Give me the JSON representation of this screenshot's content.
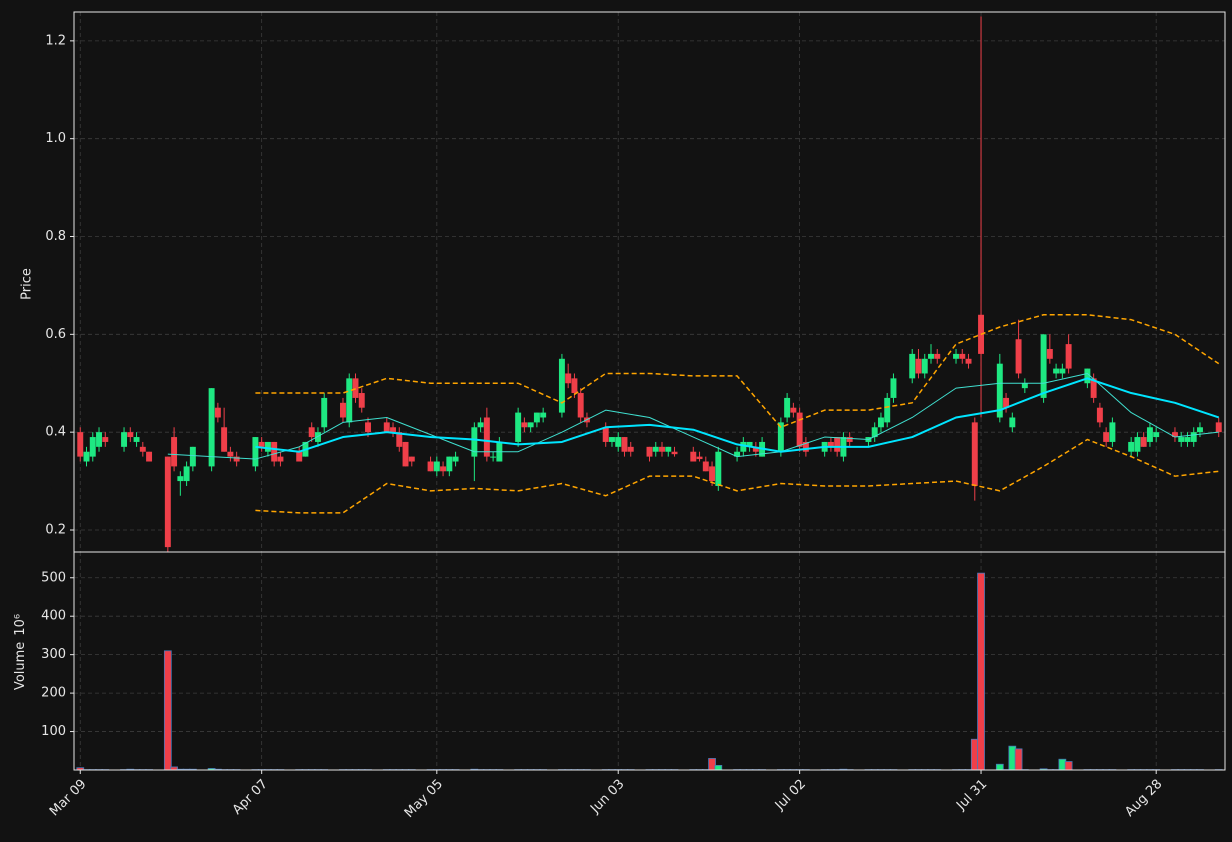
{
  "chart_data": {
    "type": "candlestick",
    "x": [
      "Mar 09",
      "Mar 10",
      "Mar 11",
      "Mar 12",
      "Mar 13",
      "Mar 16",
      "Mar 17",
      "Mar 18",
      "Mar 19",
      "Mar 20",
      "Mar 23",
      "Mar 24",
      "Mar 25",
      "Mar 26",
      "Mar 27",
      "Mar 30",
      "Mar 31",
      "Apr 01",
      "Apr 02",
      "Apr 03",
      "Apr 06",
      "Apr 07",
      "Apr 08",
      "Apr 09",
      "Apr 10",
      "Apr 13",
      "Apr 14",
      "Apr 15",
      "Apr 16",
      "Apr 17",
      "Apr 20",
      "Apr 21",
      "Apr 22",
      "Apr 23",
      "Apr 24",
      "Apr 27",
      "Apr 28",
      "Apr 29",
      "Apr 30",
      "May 01",
      "May 04",
      "May 05",
      "May 06",
      "May 07",
      "May 08",
      "May 11",
      "May 12",
      "May 13",
      "May 14",
      "May 15",
      "May 18",
      "May 19",
      "May 20",
      "May 21",
      "May 22",
      "May 25",
      "May 26",
      "May 27",
      "May 28",
      "May 29",
      "Jun 01",
      "Jun 02",
      "Jun 03",
      "Jun 04",
      "Jun 05",
      "Jun 08",
      "Jun 09",
      "Jun 10",
      "Jun 11",
      "Jun 12",
      "Jun 15",
      "Jun 16",
      "Jun 17",
      "Jun 18",
      "Jun 19",
      "Jun 22",
      "Jun 23",
      "Jun 24",
      "Jun 25",
      "Jun 26",
      "Jun 29",
      "Jun 30",
      "Jul 01",
      "Jul 02",
      "Jul 03",
      "Jul 06",
      "Jul 07",
      "Jul 08",
      "Jul 09",
      "Jul 10",
      "Jul 13",
      "Jul 14",
      "Jul 15",
      "Jul 16",
      "Jul 17",
      "Jul 20",
      "Jul 21",
      "Jul 22",
      "Jul 23",
      "Jul 24",
      "Jul 27",
      "Jul 28",
      "Jul 29",
      "Jul 30",
      "Jul 31",
      "Aug 03",
      "Aug 04",
      "Aug 05",
      "Aug 06",
      "Aug 07",
      "Aug 10",
      "Aug 11",
      "Aug 12",
      "Aug 13",
      "Aug 14",
      "Aug 17",
      "Aug 18",
      "Aug 19",
      "Aug 20",
      "Aug 21",
      "Aug 24",
      "Aug 25",
      "Aug 26",
      "Aug 27",
      "Aug 28",
      "Aug 31",
      "Sep 01",
      "Sep 02",
      "Sep 03",
      "Sep 04",
      "Sep 07"
    ],
    "open": [
      0.4,
      0.34,
      0.35,
      0.37,
      0.39,
      0.37,
      0.4,
      0.38,
      0.37,
      0.36,
      0.35,
      0.39,
      0.3,
      0.3,
      0.33,
      0.33,
      0.45,
      0.41,
      0.36,
      0.35,
      0.33,
      0.38,
      0.36,
      0.38,
      0.35,
      0.36,
      0.35,
      0.41,
      0.38,
      0.41,
      0.46,
      0.42,
      0.51,
      0.48,
      0.42,
      0.42,
      0.41,
      0.4,
      0.38,
      0.35,
      0.34,
      0.32,
      0.33,
      0.32,
      0.34,
      0.35,
      0.41,
      0.43,
      0.35,
      0.34,
      0.38,
      0.42,
      0.41,
      0.42,
      0.43,
      0.44,
      0.52,
      0.51,
      0.48,
      0.43,
      0.41,
      0.38,
      0.37,
      0.39,
      0.37,
      0.37,
      0.36,
      0.37,
      0.36,
      0.36,
      0.36,
      0.35,
      0.34,
      0.33,
      0.29,
      0.35,
      0.36,
      0.37,
      0.37,
      0.35,
      0.36,
      0.43,
      0.45,
      0.44,
      0.38,
      0.36,
      0.38,
      0.39,
      0.35,
      0.39,
      0.38,
      0.39,
      0.41,
      0.42,
      0.47,
      0.51,
      0.55,
      0.52,
      0.55,
      0.56,
      0.55,
      0.56,
      0.55,
      0.42,
      0.64,
      0.43,
      0.47,
      0.41,
      0.59,
      0.49,
      0.47,
      0.57,
      0.52,
      0.52,
      0.58,
      0.5,
      0.51,
      0.45,
      0.4,
      0.38,
      0.36,
      0.36,
      0.39,
      0.38,
      0.39,
      0.4,
      0.38,
      0.38,
      0.38,
      0.4,
      0.42
    ],
    "high": [
      0.41,
      0.37,
      0.4,
      0.41,
      0.4,
      0.41,
      0.41,
      0.4,
      0.38,
      0.36,
      0.35,
      0.41,
      0.32,
      0.34,
      0.37,
      0.49,
      0.46,
      0.45,
      0.37,
      0.36,
      0.39,
      0.39,
      0.38,
      0.38,
      0.36,
      0.37,
      0.38,
      0.42,
      0.41,
      0.48,
      0.47,
      0.52,
      0.52,
      0.49,
      0.43,
      0.43,
      0.42,
      0.41,
      0.38,
      0.35,
      0.35,
      0.35,
      0.34,
      0.35,
      0.36,
      0.42,
      0.43,
      0.45,
      0.36,
      0.39,
      0.45,
      0.43,
      0.42,
      0.44,
      0.45,
      0.56,
      0.54,
      0.52,
      0.49,
      0.44,
      0.42,
      0.39,
      0.4,
      0.39,
      0.38,
      0.37,
      0.38,
      0.38,
      0.37,
      0.37,
      0.37,
      0.36,
      0.35,
      0.34,
      0.37,
      0.37,
      0.39,
      0.38,
      0.38,
      0.39,
      0.43,
      0.48,
      0.46,
      0.45,
      0.39,
      0.38,
      0.39,
      0.39,
      0.4,
      0.4,
      0.39,
      0.42,
      0.44,
      0.48,
      0.52,
      0.57,
      0.57,
      0.56,
      0.58,
      0.57,
      0.57,
      0.57,
      0.56,
      0.43,
      1.25,
      0.56,
      0.48,
      0.44,
      0.63,
      0.51,
      0.6,
      0.6,
      0.54,
      0.54,
      0.6,
      0.53,
      0.52,
      0.46,
      0.41,
      0.43,
      0.39,
      0.4,
      0.4,
      0.42,
      0.41,
      0.41,
      0.4,
      0.4,
      0.41,
      0.42,
      0.43
    ],
    "low": [
      0.34,
      0.33,
      0.34,
      0.36,
      0.37,
      0.36,
      0.38,
      0.37,
      0.35,
      0.34,
      0.155,
      0.32,
      0.27,
      0.29,
      0.32,
      0.32,
      0.42,
      0.36,
      0.34,
      0.33,
      0.32,
      0.36,
      0.35,
      0.33,
      0.33,
      0.34,
      0.35,
      0.38,
      0.37,
      0.4,
      0.42,
      0.41,
      0.46,
      0.44,
      0.39,
      0.4,
      0.39,
      0.36,
      0.33,
      0.33,
      0.32,
      0.31,
      0.31,
      0.31,
      0.33,
      0.3,
      0.4,
      0.34,
      0.34,
      0.34,
      0.37,
      0.4,
      0.4,
      0.41,
      0.42,
      0.43,
      0.49,
      0.47,
      0.42,
      0.41,
      0.37,
      0.37,
      0.36,
      0.35,
      0.35,
      0.34,
      0.35,
      0.35,
      0.35,
      0.35,
      0.34,
      0.34,
      0.32,
      0.29,
      0.28,
      0.34,
      0.35,
      0.36,
      0.35,
      0.35,
      0.35,
      0.42,
      0.43,
      0.36,
      0.35,
      0.35,
      0.36,
      0.35,
      0.34,
      0.37,
      0.37,
      0.38,
      0.4,
      0.41,
      0.46,
      0.5,
      0.51,
      0.51,
      0.54,
      0.54,
      0.54,
      0.54,
      0.53,
      0.26,
      0.43,
      0.42,
      0.44,
      0.4,
      0.51,
      0.48,
      0.46,
      0.54,
      0.51,
      0.51,
      0.52,
      0.49,
      0.46,
      0.41,
      0.37,
      0.37,
      0.35,
      0.35,
      0.37,
      0.37,
      0.38,
      0.38,
      0.37,
      0.37,
      0.37,
      0.39,
      0.39
    ],
    "close": [
      0.35,
      0.36,
      0.39,
      0.4,
      0.38,
      0.4,
      0.39,
      0.39,
      0.36,
      0.34,
      0.165,
      0.33,
      0.31,
      0.33,
      0.37,
      0.49,
      0.43,
      0.36,
      0.35,
      0.34,
      0.39,
      0.37,
      0.38,
      0.34,
      0.34,
      0.34,
      0.38,
      0.39,
      0.4,
      0.47,
      0.43,
      0.51,
      0.47,
      0.45,
      0.4,
      0.4,
      0.4,
      0.37,
      0.33,
      0.34,
      0.32,
      0.34,
      0.32,
      0.35,
      0.35,
      0.41,
      0.42,
      0.35,
      0.35,
      0.38,
      0.44,
      0.41,
      0.42,
      0.44,
      0.44,
      0.55,
      0.5,
      0.48,
      0.43,
      0.42,
      0.38,
      0.39,
      0.39,
      0.36,
      0.36,
      0.35,
      0.37,
      0.36,
      0.37,
      0.355,
      0.34,
      0.345,
      0.32,
      0.3,
      0.36,
      0.36,
      0.38,
      0.38,
      0.36,
      0.38,
      0.42,
      0.47,
      0.44,
      0.37,
      0.36,
      0.38,
      0.37,
      0.36,
      0.39,
      0.38,
      0.39,
      0.41,
      0.43,
      0.47,
      0.51,
      0.56,
      0.52,
      0.55,
      0.56,
      0.55,
      0.56,
      0.55,
      0.54,
      0.29,
      0.56,
      0.54,
      0.45,
      0.43,
      0.52,
      0.5,
      0.6,
      0.55,
      0.53,
      0.53,
      0.53,
      0.53,
      0.47,
      0.42,
      0.38,
      0.42,
      0.38,
      0.39,
      0.37,
      0.41,
      0.4,
      0.39,
      0.39,
      0.39,
      0.4,
      0.41,
      0.4
    ],
    "up_color": "#1ee882",
    "down_color": "#ef3f49",
    "ylabel": "Price",
    "ylim": [
      0.155,
      1.259
    ],
    "yticks": [
      0.2,
      0.4,
      0.6,
      0.8,
      {
        "value": 1,
        "label": "1.0"
      },
      1.2
    ],
    "xlim": [
      "Mar 08",
      "Sep 08"
    ],
    "xticks": [
      "Mar 09",
      "Apr 07",
      "May 05",
      "Jun 03",
      "Jul 02",
      "Jul 31",
      "Aug 28"
    ],
    "grid": true,
    "line_x": [
      "Mar 09",
      "Mar 16",
      "Mar 23",
      "Mar 30",
      "Apr 06",
      "Apr 13",
      "Apr 20",
      "Apr 27",
      "May 04",
      "May 11",
      "May 18",
      "May 25",
      "Jun 01",
      "Jun 08",
      "Jun 15",
      "Jun 22",
      "Jun 29",
      "Jul 06",
      "Jul 13",
      "Jul 20",
      "Jul 27",
      "Aug 03",
      "Aug 10",
      "Aug 17",
      "Aug 24",
      "Aug 31",
      "Sep 07"
    ],
    "lines": [
      {
        "color": "#40e0d0",
        "linewidth": 1,
        "linestyle": "solid",
        "values": [
          null,
          null,
          0.355,
          0.35,
          0.345,
          0.37,
          0.42,
          0.43,
          0.395,
          0.36,
          0.36,
          0.4,
          0.445,
          0.43,
          0.39,
          0.35,
          0.36,
          0.39,
          0.385,
          0.43,
          0.49,
          0.5,
          0.5,
          0.52,
          0.44,
          0.39,
          0.4
        ]
      },
      {
        "color": "#00e5ff",
        "linewidth": 2,
        "linestyle": "solid",
        "values": [
          null,
          null,
          null,
          null,
          0.37,
          0.36,
          0.39,
          0.4,
          0.39,
          0.385,
          0.375,
          0.38,
          0.41,
          0.415,
          0.405,
          0.375,
          0.36,
          0.37,
          0.37,
          0.39,
          0.43,
          0.445,
          0.48,
          0.51,
          0.48,
          0.46,
          0.43
        ]
      },
      {
        "color": "#ffa500",
        "linewidth": 1.5,
        "linestyle": "dashed",
        "values": [
          null,
          null,
          null,
          null,
          0.48,
          0.48,
          0.48,
          0.51,
          0.5,
          0.5,
          0.5,
          0.46,
          0.52,
          0.52,
          0.515,
          0.515,
          0.41,
          0.445,
          0.445,
          0.46,
          0.58,
          0.615,
          0.64,
          0.64,
          0.63,
          0.6,
          0.54
        ]
      },
      {
        "color": "#ffa500",
        "linewidth": 1.5,
        "linestyle": "dashed",
        "values": [
          null,
          null,
          null,
          null,
          0.24,
          0.235,
          0.235,
          0.295,
          0.28,
          0.285,
          0.28,
          0.295,
          0.27,
          0.31,
          0.31,
          0.28,
          0.295,
          0.29,
          0.29,
          0.295,
          0.3,
          0.28,
          0.33,
          0.385,
          0.35,
          0.31,
          0.32
        ]
      }
    ],
    "volume": {
      "ylabel": "Volume",
      "unit": "10⁶",
      "ylim": [
        0,
        567
      ],
      "yticks": [
        100,
        200,
        300,
        400,
        500
      ],
      "values": [
        6,
        1,
        1,
        1,
        1,
        1,
        2,
        1,
        1,
        1,
        310,
        8,
        2,
        2,
        2,
        4,
        2,
        1,
        1,
        1,
        1,
        1,
        1,
        1,
        1,
        1,
        1,
        1,
        1,
        1,
        1,
        1,
        1,
        1,
        1,
        1,
        1,
        1,
        1,
        1,
        1,
        1,
        1,
        1,
        1,
        2,
        1,
        1,
        1,
        1,
        1,
        1,
        1,
        1,
        1,
        1,
        1,
        1,
        1,
        1,
        1,
        1,
        1,
        1,
        1,
        1,
        1,
        1,
        1,
        1,
        1,
        1,
        1,
        30,
        12,
        1,
        1,
        1,
        1,
        1,
        1,
        1,
        1,
        1,
        1,
        1,
        1,
        1,
        2,
        1,
        1,
        1,
        1,
        1,
        1,
        1,
        1,
        1,
        1,
        1,
        1,
        1,
        1,
        80,
        512,
        15,
        1,
        62,
        55,
        1,
        3,
        1,
        1,
        28,
        22,
        1,
        1,
        1,
        1,
        1,
        1,
        1,
        1,
        1,
        1,
        1,
        1,
        1,
        1,
        1,
        1
      ]
    }
  }
}
